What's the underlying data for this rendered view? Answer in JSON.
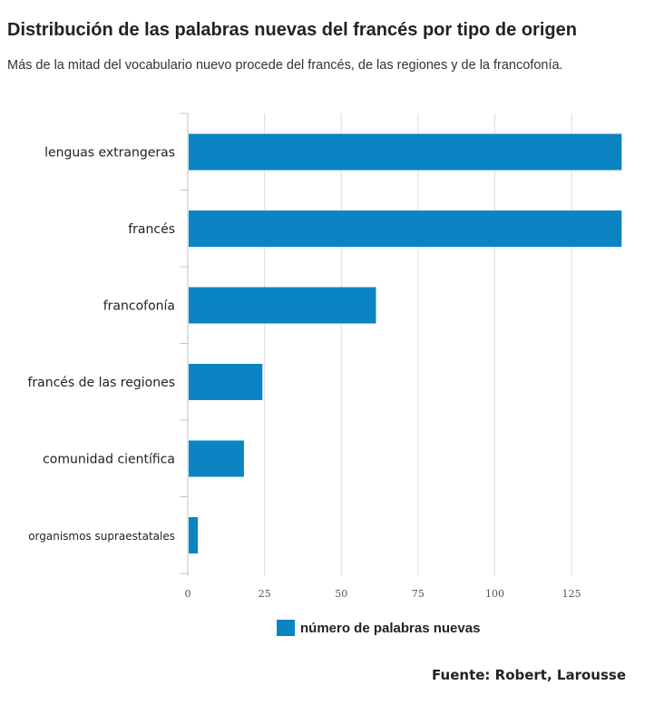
{
  "header": {
    "title": "Distribución de las palabras nuevas del francés por tipo de origen",
    "subtitle": "Más de la mitad del vocabulario nuevo procede del francés, de las regiones y de la francofonía."
  },
  "chart_data": {
    "type": "bar",
    "orientation": "horizontal",
    "categories": [
      "lenguas extrangeras",
      "francés",
      "francofonía",
      "francés de las regiones",
      "comunidad científica",
      "organismos supraestatales"
    ],
    "series": [
      {
        "name": "número de palabras nuevas",
        "values": [
          141,
          141,
          61,
          24,
          18,
          3
        ]
      }
    ],
    "xlim": [
      0,
      141
    ],
    "xticks": [
      0,
      25,
      50,
      75,
      100,
      125
    ],
    "grid": true,
    "legend_position": "bottom",
    "bar_color": "#0a84c3"
  },
  "legend": {
    "label": "número de palabras nuevas"
  },
  "footer": {
    "source": "Fuente: Robert, Larousse"
  }
}
